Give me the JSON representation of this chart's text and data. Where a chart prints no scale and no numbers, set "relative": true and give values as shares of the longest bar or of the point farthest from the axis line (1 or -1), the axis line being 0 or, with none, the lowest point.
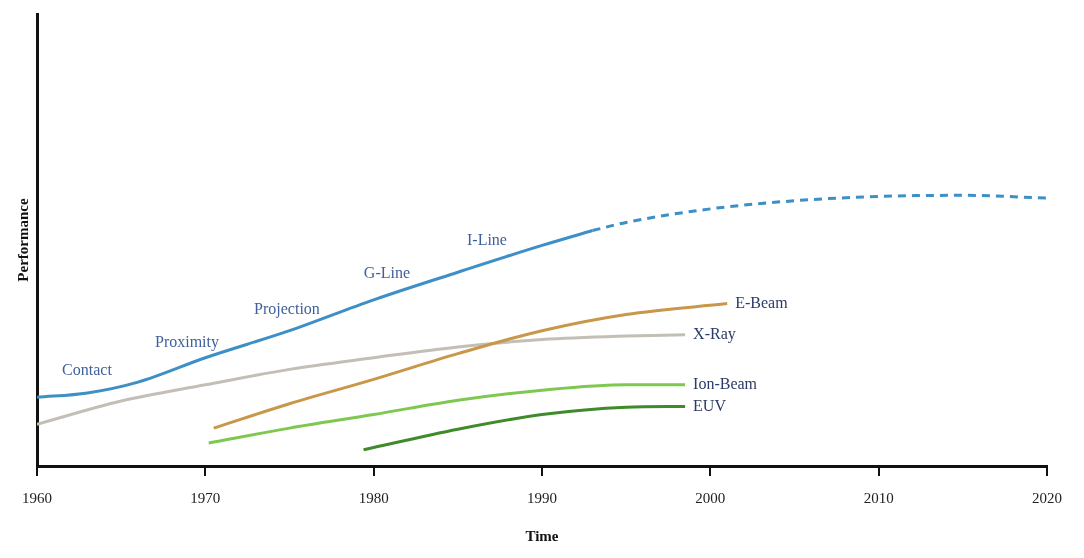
{
  "chart_data": {
    "type": "line",
    "relative": true,
    "xlabel": "Time",
    "ylabel": "Performance",
    "xlim": [
      1960,
      2020
    ],
    "xticks": [
      1960,
      1970,
      1980,
      1990,
      2000,
      2010,
      2020
    ],
    "tick_labels": "x",
    "grid": false,
    "legend": false,
    "marker": "none",
    "series": [
      {
        "color": "#3d8fc6",
        "line_style": "solid",
        "x": [
          1960,
          1963,
          1966,
          1970,
          1975,
          1980,
          1985,
          1990,
          1993
        ],
        "values": [
          0.254,
          0.27,
          0.31,
          0.4,
          0.5,
          0.614,
          0.716,
          0.815,
          0.87
        ]
      },
      {
        "color": "#3d8fc6",
        "line_style": "dashed",
        "x": [
          1993,
          1995,
          2000,
          2005,
          2010,
          2015,
          2020
        ],
        "values": [
          0.87,
          0.9,
          0.95,
          0.98,
          0.996,
          1.0,
          0.99
        ]
      },
      {
        "name": "E-Beam",
        "color": "#c8974a",
        "line_style": "solid",
        "x": [
          1970.5,
          1975,
          1980,
          1985,
          1990,
          1995,
          2001
        ],
        "values": [
          0.14,
          0.23,
          0.32,
          0.415,
          0.5,
          0.56,
          0.6
        ]
      },
      {
        "name": "X-Ray",
        "color": "#c3bfb6",
        "line_style": "solid",
        "x": [
          1960,
          1965,
          1970,
          1975,
          1980,
          1985,
          1990,
          1995,
          1998.5
        ],
        "values": [
          0.154,
          0.24,
          0.3,
          0.357,
          0.4,
          0.44,
          0.467,
          0.48,
          0.485
        ]
      },
      {
        "name": "Ion-Beam",
        "color": "#7ec850",
        "line_style": "solid",
        "x": [
          1970.2,
          1975,
          1980,
          1985,
          1990,
          1995,
          1998.5
        ],
        "values": [
          0.085,
          0.14,
          0.19,
          0.243,
          0.28,
          0.3,
          0.3
        ]
      },
      {
        "name": "EUV",
        "color": "#3f8a2a",
        "line_style": "solid",
        "x": [
          1979.4,
          1985,
          1990,
          1995,
          1998.5
        ],
        "values": [
          0.06,
          0.136,
          0.19,
          0.217,
          0.22
        ]
      }
    ],
    "annotations": [
      "Contact",
      "Proximity",
      "Projection",
      "G-Line",
      "I-Line"
    ]
  }
}
